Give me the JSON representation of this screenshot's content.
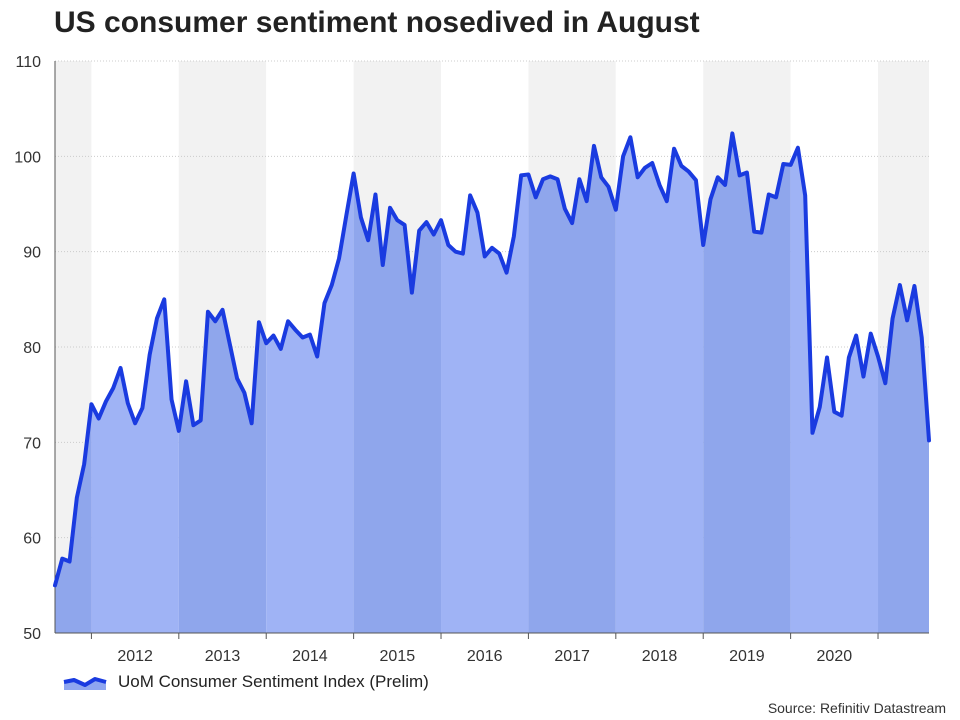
{
  "chart_data": {
    "type": "area",
    "title": "US consumer sentiment nosedived in August",
    "xlabel": "",
    "ylabel": "",
    "ylim": [
      50,
      110
    ],
    "yticks": [
      "50",
      "60",
      "70",
      "80",
      "90",
      "100",
      "110"
    ],
    "xticks": [
      "2012",
      "2013",
      "2014",
      "2015",
      "2016",
      "2017",
      "2018",
      "2019",
      "2020"
    ],
    "x_start": "2011-08",
    "x_end": "2021-08",
    "grid": true,
    "series": [
      {
        "name": "UoM Consumer Sentiment Index (Prelim)",
        "color": "#1a3be0",
        "values": [
          55.0,
          57.8,
          57.5,
          64.2,
          67.7,
          74.0,
          72.5,
          74.3,
          75.7,
          77.8,
          74.1,
          72.0,
          73.6,
          79.2,
          83.0,
          85.0,
          74.5,
          71.2,
          76.4,
          71.8,
          72.3,
          83.7,
          82.7,
          83.9,
          80.3,
          76.7,
          75.2,
          72.0,
          82.6,
          80.4,
          81.2,
          79.8,
          82.7,
          81.8,
          81.0,
          81.3,
          79.0,
          84.6,
          86.5,
          89.3,
          93.8,
          98.2,
          93.6,
          91.2,
          96.0,
          88.6,
          94.6,
          93.3,
          92.8,
          85.7,
          92.2,
          93.1,
          91.8,
          93.3,
          90.7,
          90.0,
          89.8,
          95.9,
          94.1,
          89.5,
          90.4,
          89.8,
          87.8,
          91.6,
          98.0,
          98.1,
          95.7,
          97.6,
          97.9,
          97.6,
          94.5,
          93.0,
          97.6,
          95.3,
          101.1,
          97.8,
          96.8,
          94.4,
          100.0,
          102.0,
          97.8,
          98.8,
          99.3,
          97.0,
          95.3,
          100.8,
          99.0,
          98.4,
          97.5,
          90.7,
          95.5,
          97.8,
          97.0,
          102.4,
          98.0,
          98.3,
          92.1,
          92.0,
          96.0,
          95.7,
          99.2,
          99.1,
          100.9,
          95.9,
          71.0,
          73.7,
          78.9,
          73.2,
          72.8,
          78.9,
          81.2,
          76.9,
          81.4,
          79.0,
          76.2,
          83.0,
          86.5,
          82.8,
          86.4,
          81.0,
          70.2
        ]
      }
    ]
  },
  "legend": {
    "label": "UoM Consumer Sentiment Index (Prelim)",
    "swatch_color": "#1a3be0",
    "fill_color": "#8fa6f0"
  },
  "source": "Source: Refinitiv Datastream",
  "colors": {
    "line": "#1a3be0",
    "fill_even": "#8fa6ec",
    "fill_odd": "#9fb3f5",
    "band_light": "#f2f2f2",
    "grid": "#cccccc"
  }
}
